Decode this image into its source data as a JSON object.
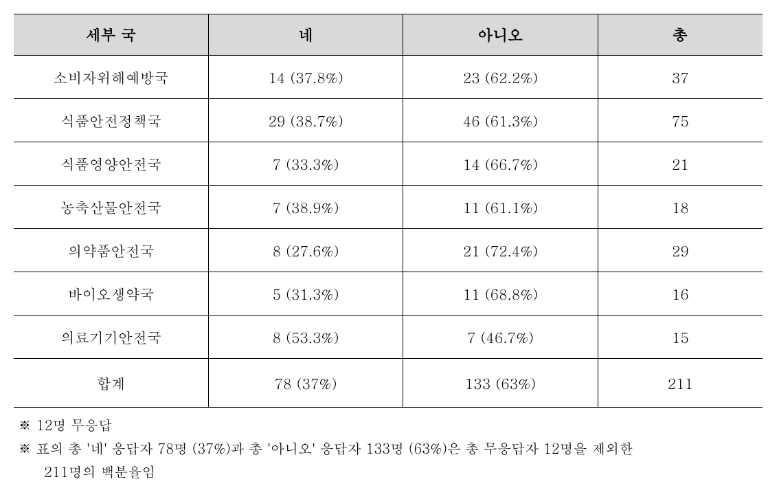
{
  "table": {
    "type": "table",
    "background_color": "#ffffff",
    "header_background": "#d9d9d9",
    "border_color": "#000000",
    "font_family": "Batang, serif",
    "header_fontsize": 22,
    "cell_fontsize": 21,
    "columns": [
      {
        "label": "세부 국",
        "width": "26%",
        "align": "center"
      },
      {
        "label": "네",
        "width": "26%",
        "align": "center"
      },
      {
        "label": "아니오",
        "width": "26%",
        "align": "center"
      },
      {
        "label": "총",
        "width": "22%",
        "align": "center"
      }
    ],
    "rows": [
      {
        "dept": "소비자위해예방국",
        "yes": "14 (37.8%)",
        "no": "23 (62.2%)",
        "total": "37"
      },
      {
        "dept": "식품안전정책국",
        "yes": "29 (38.7%)",
        "no": "46 (61.3%)",
        "total": "75"
      },
      {
        "dept": "식품영양안전국",
        "yes": "7 (33.3%)",
        "no": "14 (66.7%)",
        "total": "21"
      },
      {
        "dept": "농축산물안전국",
        "yes": "7 (38.9%)",
        "no": "11 (61.1%)",
        "total": "18"
      },
      {
        "dept": "의약품안전국",
        "yes": "8 (27.6%)",
        "no": "21 (72.4%)",
        "total": "29"
      },
      {
        "dept": "바이오생약국",
        "yes": "5 (31.3%)",
        "no": "11 (68.8%)",
        "total": "16"
      },
      {
        "dept": "의료기기안전국",
        "yes": "8 (53.3%)",
        "no": "7 (46.7%)",
        "total": "15"
      },
      {
        "dept": "합계",
        "yes": "78 (37%)",
        "no": "133 (63%)",
        "total": "211"
      }
    ]
  },
  "footnotes": {
    "lines": [
      "※ 12명 무응답",
      "※ 표의 총 '네' 응답자 78명 (37%)과 총 '아니오' 응답자 133명 (63%)은 총 무응답자 12명을 제외한",
      "211명의 백분율임"
    ],
    "fontsize": 20,
    "color": "#000000"
  }
}
